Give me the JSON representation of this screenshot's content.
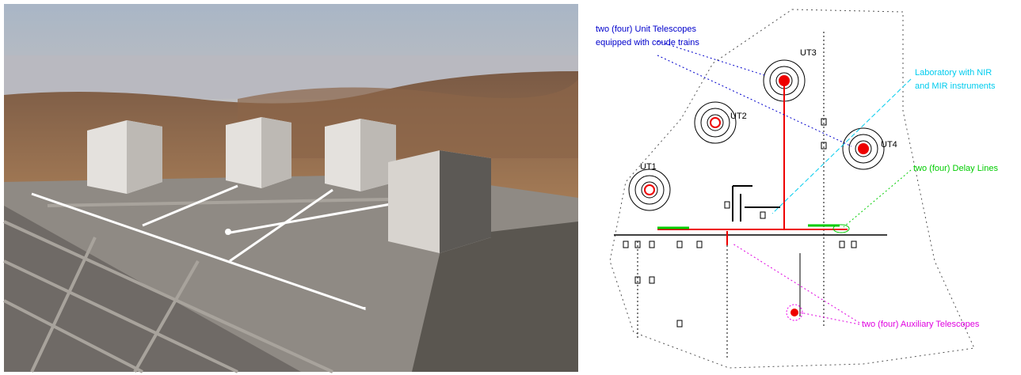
{
  "diagram": {
    "annotations": [
      {
        "lines": [
          "two (four) Unit Telescopes",
          "equipped with coude trains"
        ]
      },
      {
        "lines": [
          "Laboratory with NIR",
          "and MIR instruments"
        ]
      },
      {
        "lines": [
          "two (four) Delay Lines"
        ]
      },
      {
        "lines": [
          "two (four) Auxiliary Telescopes"
        ]
      }
    ],
    "telescopes": [
      "UT1",
      "UT2",
      "UT3",
      "UT4"
    ]
  }
}
